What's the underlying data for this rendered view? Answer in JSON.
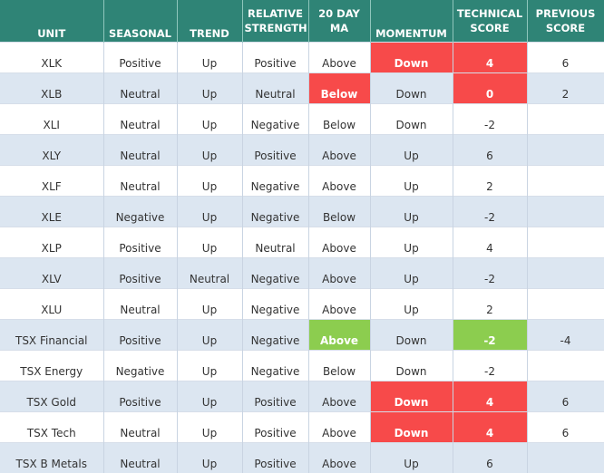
{
  "headers": {
    "unit": "UNIT",
    "seasonal": "SEASONAL",
    "trend": "TREND",
    "relative_strength": [
      "RELATIVE",
      "STRENGTH"
    ],
    "ma20": [
      "20 DAY",
      "MA"
    ],
    "momentum": "MOMENTUM",
    "technical_score": [
      "TECHNICAL",
      "SCORE"
    ],
    "previous_score": [
      "PREVIOUS",
      "SCORE"
    ]
  },
  "colors": {
    "header_bg": "#2f8476",
    "alt_row_bg": "#dce6f1",
    "negative_highlight": "#f74a4a",
    "positive_highlight": "#8ccd4f"
  },
  "rows": [
    {
      "unit": "XLK",
      "seasonal": "Positive",
      "trend": "Up",
      "rs": "Positive",
      "ma": "Above",
      "momentum": "Down",
      "tech": "4",
      "prev": "6"
    },
    {
      "unit": "XLB",
      "seasonal": "Neutral",
      "trend": "Up",
      "rs": "Neutral",
      "ma": "Below",
      "momentum": "Down",
      "tech": "0",
      "prev": "2"
    },
    {
      "unit": "XLI",
      "seasonal": "Neutral",
      "trend": "Up",
      "rs": "Negative",
      "ma": "Below",
      "momentum": "Down",
      "tech": "-2",
      "prev": ""
    },
    {
      "unit": "XLY",
      "seasonal": "Neutral",
      "trend": "Up",
      "rs": "Positive",
      "ma": "Above",
      "momentum": "Up",
      "tech": "6",
      "prev": ""
    },
    {
      "unit": "XLF",
      "seasonal": "Neutral",
      "trend": "Up",
      "rs": "Negative",
      "ma": "Above",
      "momentum": "Up",
      "tech": "2",
      "prev": ""
    },
    {
      "unit": "XLE",
      "seasonal": "Negative",
      "trend": "Up",
      "rs": "Negative",
      "ma": "Below",
      "momentum": "Up",
      "tech": "-2",
      "prev": ""
    },
    {
      "unit": "XLP",
      "seasonal": "Positive",
      "trend": "Up",
      "rs": "Neutral",
      "ma": "Above",
      "momentum": "Up",
      "tech": "4",
      "prev": ""
    },
    {
      "unit": "XLV",
      "seasonal": "Positive",
      "trend": "Neutral",
      "rs": "Negative",
      "ma": "Above",
      "momentum": "Up",
      "tech": "-2",
      "prev": ""
    },
    {
      "unit": "XLU",
      "seasonal": "Neutral",
      "trend": "Up",
      "rs": "Negative",
      "ma": "Above",
      "momentum": "Up",
      "tech": "2",
      "prev": ""
    },
    {
      "unit": "TSX Financial",
      "seasonal": "Positive",
      "trend": "Up",
      "rs": "Negative",
      "ma": "Above",
      "momentum": "Down",
      "tech": "-2",
      "prev": "-4"
    },
    {
      "unit": "TSX Energy",
      "seasonal": "Negative",
      "trend": "Up",
      "rs": "Negative",
      "ma": "Below",
      "momentum": "Down",
      "tech": "-2",
      "prev": ""
    },
    {
      "unit": "TSX Gold",
      "seasonal": "Positive",
      "trend": "Up",
      "rs": "Positive",
      "ma": "Above",
      "momentum": "Down",
      "tech": "4",
      "prev": "6"
    },
    {
      "unit": "TSX Tech",
      "seasonal": "Neutral",
      "trend": "Up",
      "rs": "Positive",
      "ma": "Above",
      "momentum": "Down",
      "tech": "4",
      "prev": "6"
    },
    {
      "unit": "TSX B Metals",
      "seasonal": "Neutral",
      "trend": "Up",
      "rs": "Positive",
      "ma": "Above",
      "momentum": "Up",
      "tech": "6",
      "prev": ""
    }
  ]
}
